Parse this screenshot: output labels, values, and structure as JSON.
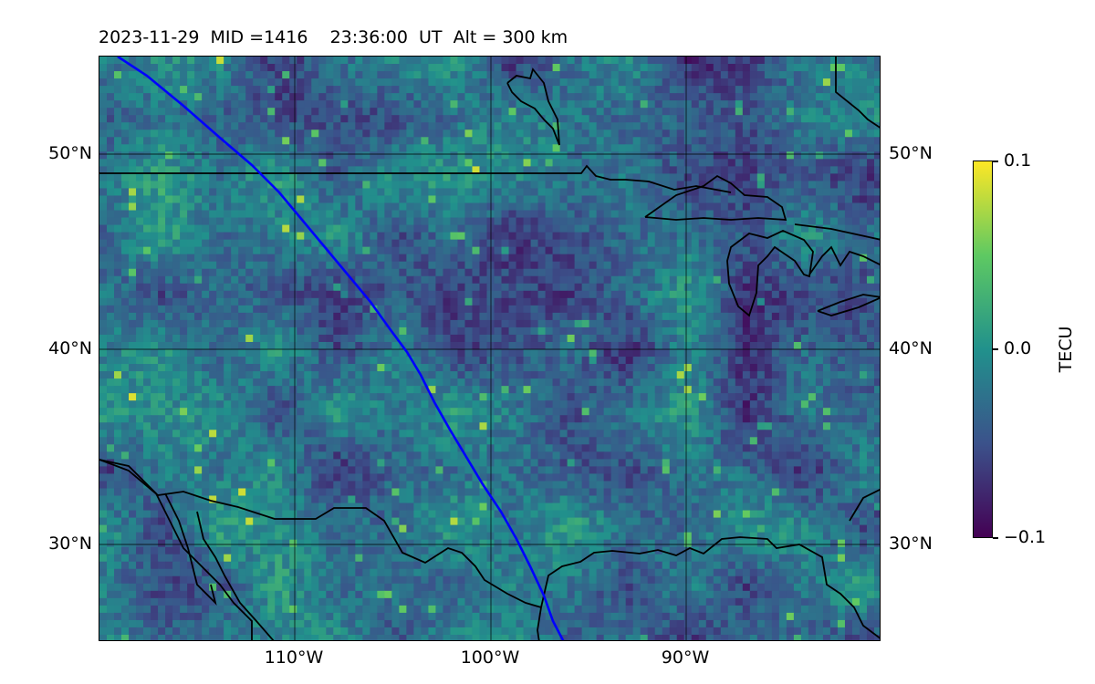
{
  "header": {
    "title": "2023-11-29  MID =1416    23:36:00  UT  Alt = 300 km"
  },
  "map": {
    "lat_labels": [
      "50°N",
      "40°N",
      "30°N"
    ],
    "lon_labels": [
      "110°W",
      "100°W",
      "90°W"
    ],
    "extent": {
      "lon": [
        -120,
        -80
      ],
      "lat": [
        25,
        55
      ]
    },
    "track_color": "#0000ff",
    "coastline_color": "#000000"
  },
  "colorbar": {
    "label": "TECU",
    "max_label": "0.1",
    "mid_label": "0.0",
    "min_label": "−0.1",
    "colormap": "viridis",
    "range": [
      -0.1,
      0.1
    ]
  }
}
